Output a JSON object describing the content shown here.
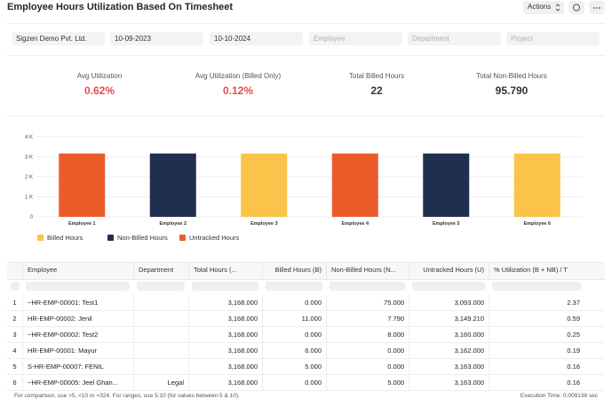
{
  "header": {
    "title": "Employee Hours Utilization Based On Timesheet",
    "actions": "Actions"
  },
  "filters": [
    "Sigzen Demo Pvt. Ltd.",
    "10-09-2023",
    "10-10-2024",
    "Employee",
    "Department",
    "Project"
  ],
  "cards": [
    {
      "label": "Avg Utilization",
      "value": "0.62%",
      "color": "#e24c4c"
    },
    {
      "label": "Avg Utilization (Billed Only)",
      "value": "0.12%",
      "color": "#e24c4c"
    },
    {
      "label": "Total Billed Hours",
      "value": "22",
      "color": "#333333"
    },
    {
      "label": "Total Non-Billed Hours",
      "value": "95.790",
      "color": "#333333"
    }
  ],
  "chart_data": {
    "type": "bar",
    "categories": [
      "Employee 1",
      "Employee 2",
      "Employee 3",
      "Employee 4",
      "Employee 5",
      "Employee 6"
    ],
    "values": [
      3168,
      3168,
      3168,
      3168,
      3168,
      3168
    ],
    "colors": [
      "#eb5c2b",
      "#1f2f4d",
      "#f9c449",
      "#eb5c2b",
      "#1f2f4d",
      "#f9c449"
    ],
    "ylim": [
      0,
      4000
    ],
    "yticks": [
      0,
      {
        "value": 1000,
        "label": "1 K"
      },
      {
        "value": 2000,
        "label": "2 K"
      },
      {
        "value": 3000,
        "label": "3 K"
      },
      {
        "value": 4000,
        "label": "4 K"
      }
    ],
    "grid": true,
    "legend": [
      {
        "name": "Billed Hours",
        "color": "#f9c449"
      },
      {
        "name": "Non-Billed Hours",
        "color": "#1f2f4d"
      },
      {
        "name": "Untracked Hours",
        "color": "#eb5c2b"
      }
    ]
  },
  "table": {
    "columns": [
      "Employee",
      "Department",
      "Total Hours (...",
      "Billed Hours (B)",
      "Non-Billed Hours (N...",
      "Untracked Hours (U)",
      "% Utilization (B + NB) / T"
    ],
    "rows": [
      [
        "1",
        "~HR-EMP-00001: Test1",
        "",
        "3,168.000",
        "0.000",
        "75.000",
        "3,093.000",
        "2.37"
      ],
      [
        "2",
        "HR-EMP-00002: Jenil",
        "",
        "3,168.000",
        "11.000",
        "7.790",
        "3,149.210",
        "0.59"
      ],
      [
        "3",
        "~HR-EMP-00002: Test2",
        "",
        "3,168.000",
        "0.000",
        "8.000",
        "3,160.000",
        "0.25"
      ],
      [
        "4",
        "HR-EMP-00001: Mayur",
        "",
        "3,168.000",
        "6.000",
        "0.000",
        "3,162.000",
        "0.19"
      ],
      [
        "5",
        "S-HR-EMP-00007: FENIL",
        "",
        "3,168.000",
        "5.000",
        "0.000",
        "3,163.000",
        "0.16"
      ],
      [
        "6",
        "~HR-EMP-00005: Jeel Ghan...",
        "Legal",
        "3,168.000",
        "0.000",
        "5.000",
        "3,163.000",
        "0.16"
      ]
    ]
  },
  "footer": {
    "hint": "For comparison, use >5, <10 or =324. For ranges, use 5:10 (for values between 5 & 10).",
    "execution_time": "Execution Time: 0.009138 sec"
  }
}
